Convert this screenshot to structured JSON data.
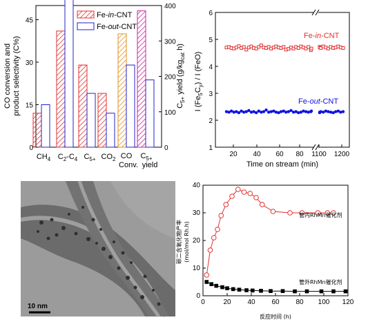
{
  "chart_data": [
    {
      "type": "bar",
      "categories": [
        "CH4",
        "C2-C4",
        "C5+",
        "CO2",
        "CO Conv.",
        "C5+ yield"
      ],
      "series": [
        {
          "name": "Fe-in-CNT",
          "values": [
            12,
            41,
            29,
            19,
            40,
            385
          ],
          "color": "#e03030",
          "hatch": true
        },
        {
          "name": "Fe-out-CNT",
          "values": [
            15,
            53,
            19,
            12,
            29,
            190
          ],
          "color": "#2020d0",
          "hatch": false
        }
      ],
      "conv_colors": {
        "in": "#e09020",
        "out": "#2020d0"
      },
      "yield_colors": {
        "in": "#cc2299",
        "out": "#2020d0"
      },
      "ylabel_left_1": "CO conversion and",
      "ylabel_left_2": "product selectivity (C%)",
      "ylabel_right": "C5+ yield (g/kgcat h)",
      "ylim_left": [
        0,
        50
      ],
      "ylim_right": [
        0,
        400
      ],
      "left_ticks": [
        0,
        15,
        30,
        45
      ],
      "right_ticks": [
        0,
        100,
        200,
        300,
        400
      ],
      "xtick_labels": {
        "ch4": "CH",
        "ch4_sub": "4",
        "c2": "C",
        "c2_sub": "2",
        "c2_mid": "-C",
        "c4_sub": "4",
        "c5": "C",
        "c5_sub": "5+",
        "co2": "CO",
        "co2_sub": "2",
        "conv_1": "CO",
        "conv_2": "Conv.",
        "yield_c": "C",
        "yield_sub": "5+",
        "yield_2": "yield"
      }
    },
    {
      "type": "scatter",
      "xlabel": "Time on stream (min)",
      "ylabel": "I (Fe5Cy) / I (FeO)",
      "xlim": [
        0,
        1200
      ],
      "ylim": [
        1,
        6
      ],
      "x_ticks": [
        "20",
        "40",
        "60",
        "80",
        "1100",
        "1200"
      ],
      "y_ticks": [
        1,
        2,
        3,
        4,
        5,
        6
      ],
      "broken_axis": true,
      "series": [
        {
          "name": "Fe-in-CNT",
          "marker": "open-square",
          "color": "#e03030",
          "y": [
            4.7,
            4.72,
            4.68,
            4.66,
            4.7,
            4.75,
            4.68,
            4.72,
            4.62,
            4.7,
            4.74,
            4.68,
            4.66,
            4.72,
            4.78,
            4.7,
            4.68,
            4.72,
            4.66,
            4.7,
            4.74,
            4.7,
            4.68,
            4.72,
            4.62,
            4.65,
            4.7,
            4.66,
            4.72,
            4.68,
            4.74,
            4.7,
            4.66,
            4.72,
            4.6,
            4.66,
            4.72,
            4.7,
            4.68,
            4.74,
            4.7,
            4.66,
            4.72,
            4.68,
            4.7,
            4.74,
            4.7,
            4.68
          ]
        },
        {
          "name": "Fe-out-CNT",
          "marker": "filled-circle",
          "color": "#1010e0",
          "y": [
            2.32,
            2.3,
            2.34,
            2.3,
            2.32,
            2.28,
            2.34,
            2.3,
            2.32,
            2.36,
            2.3,
            2.32,
            2.28,
            2.34,
            2.3,
            2.32,
            2.38,
            2.3,
            2.32,
            2.34,
            2.3,
            2.28,
            2.32,
            2.34,
            2.3,
            2.32,
            2.36,
            2.3,
            2.32,
            2.28,
            2.3,
            2.34,
            2.32,
            2.3,
            2.32,
            2.34,
            2.3,
            2.28,
            2.32,
            2.3,
            2.34,
            2.32,
            2.3,
            2.28,
            2.32,
            2.34,
            2.3,
            2.32
          ]
        }
      ],
      "labels": {
        "in_a": "Fe-",
        "in_b": "in",
        "in_c": "-CNT",
        "out_a": "Fe-",
        "out_b": "out",
        "out_c": "-CNT"
      }
    },
    {
      "type": "line",
      "xlabel": "反应时间 (h)",
      "ylabel_1": "碳二含氧化物产率",
      "ylabel_2": "(mol/mol Rh.h)",
      "xlim": [
        0,
        120
      ],
      "ylim": [
        0,
        40
      ],
      "x_ticks": [
        0,
        20,
        40,
        60,
        80,
        100,
        120
      ],
      "y_ticks": [
        0,
        10,
        20,
        30,
        40
      ],
      "series": [
        {
          "name": "管内RhMn催化剂",
          "marker": "open-circle",
          "color": "#e03030",
          "x": [
            3,
            6,
            9,
            12,
            15,
            19,
            24,
            29,
            34,
            39,
            44,
            49,
            58,
            72,
            82,
            95,
            103,
            108
          ],
          "y": [
            7.5,
            16.5,
            21,
            24,
            29,
            33,
            36,
            38.5,
            37.5,
            37,
            35.5,
            33,
            30.5,
            30,
            30,
            30,
            30,
            30
          ]
        },
        {
          "name": "管外RhMn催化剂",
          "marker": "filled-square",
          "color": "#000000",
          "x": [
            3,
            7,
            11,
            16,
            20,
            25,
            30,
            36,
            41,
            48,
            56,
            66,
            76,
            86,
            98,
            108,
            118
          ],
          "y": [
            5,
            4.2,
            3.6,
            3.1,
            2.7,
            2.4,
            2.2,
            2.0,
            1.9,
            1.8,
            1.7,
            1.7,
            1.6,
            1.6,
            1.6,
            1.6,
            1.6
          ]
        }
      ]
    }
  ],
  "micrograph": {
    "scale_label": "10 nm"
  }
}
